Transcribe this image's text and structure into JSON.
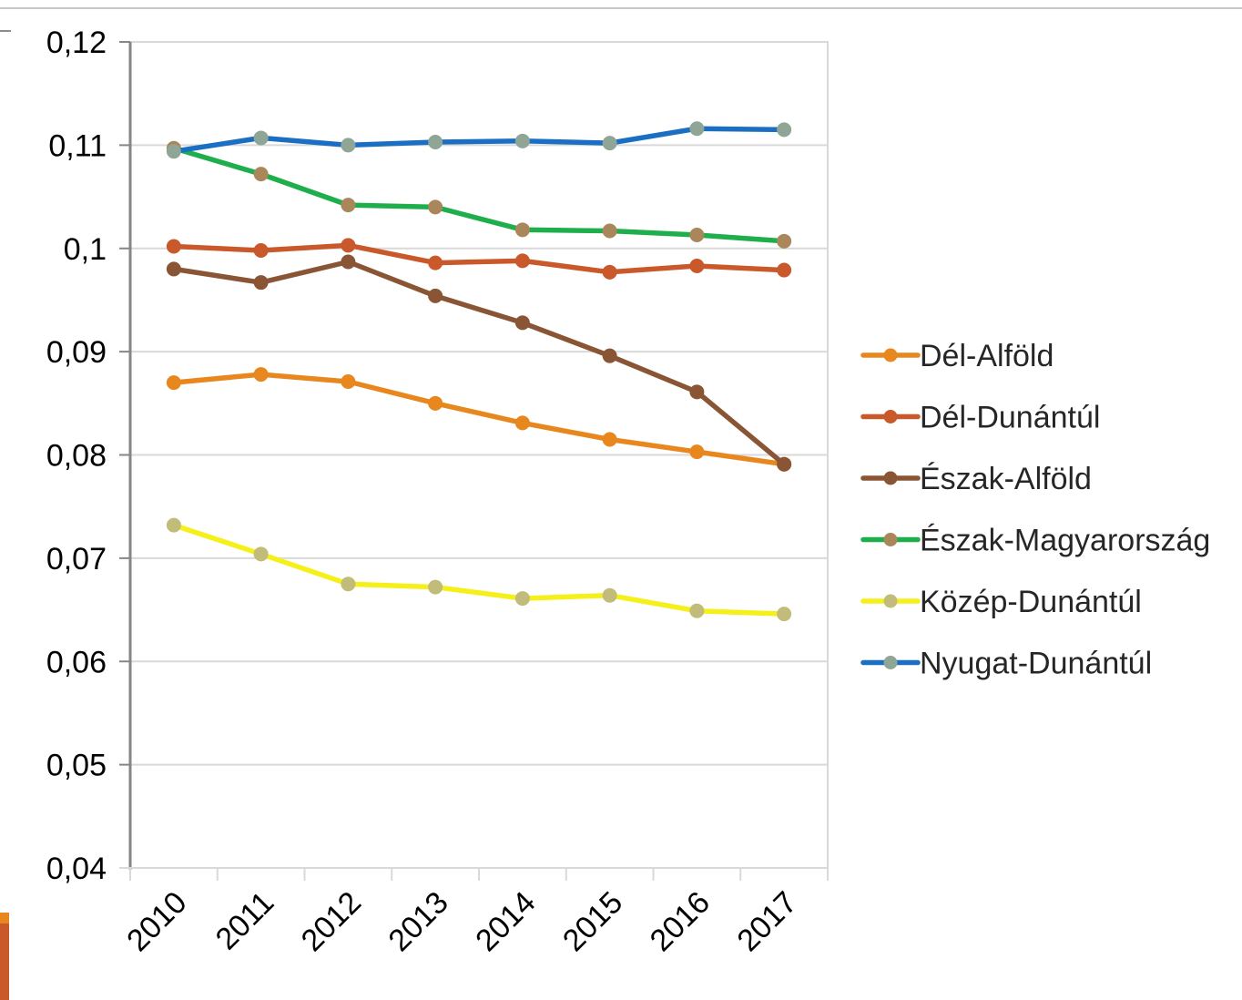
{
  "chart_data": {
    "type": "line",
    "title": "",
    "xlabel": "",
    "ylabel": "",
    "categories": [
      "2010",
      "2011",
      "2012",
      "2013",
      "2014",
      "2015",
      "2016",
      "2017"
    ],
    "ylim": [
      0.04,
      0.12
    ],
    "yticks": [
      0.04,
      0.05,
      0.06,
      0.07,
      0.08,
      0.09,
      0.1,
      0.11,
      0.12
    ],
    "ytick_labels": [
      "0,04",
      "0,05",
      "0,06",
      "0,07",
      "0,08",
      "0,09",
      "0,1",
      "0,11",
      "0,12"
    ],
    "grid": true,
    "legend_position": "right",
    "series": [
      {
        "name": "Dél-Alföld",
        "color": "#E8871E",
        "marker_color": "#E8871E",
        "values": [
          0.087,
          0.0878,
          0.0871,
          0.085,
          0.0831,
          0.0815,
          0.0803,
          0.0791
        ]
      },
      {
        "name": "Dél-Dunántúl",
        "color": "#C9582A",
        "marker_color": "#C9582A",
        "values": [
          0.1002,
          0.0998,
          0.1003,
          0.0986,
          0.0988,
          0.0977,
          0.0983,
          0.0979
        ]
      },
      {
        "name": "Észak-Alföld",
        "color": "#8A5534",
        "marker_color": "#8A5534",
        "values": [
          0.098,
          0.0967,
          0.0987,
          0.0954,
          0.0928,
          0.0896,
          0.0861,
          0.0791
        ]
      },
      {
        "name": "Észak-Magyarország",
        "color": "#1FAE4C",
        "marker_color": "#A9875A",
        "values": [
          0.1097,
          0.1072,
          0.1042,
          0.104,
          0.1018,
          0.1017,
          0.1013,
          0.1007
        ]
      },
      {
        "name": "Közép-Dunántúl",
        "color": "#F5F01A",
        "marker_color": "#C2BC7A",
        "values": [
          0.0732,
          0.0704,
          0.0675,
          0.0672,
          0.0661,
          0.0664,
          0.0649,
          0.0646
        ]
      },
      {
        "name": "Nyugat-Dunántúl",
        "color": "#1A6FC2",
        "marker_color": "#8FA595",
        "values": [
          0.1094,
          0.1107,
          0.11,
          0.1103,
          0.1104,
          0.1102,
          0.1116,
          0.1115
        ]
      }
    ]
  }
}
